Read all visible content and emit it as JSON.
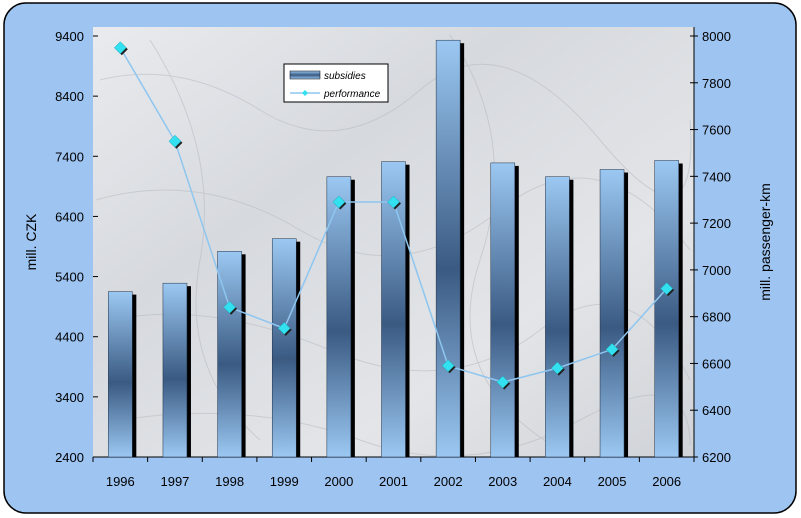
{
  "chart_data": {
    "type": "bar",
    "categories": [
      "1996",
      "1997",
      "1998",
      "1999",
      "2000",
      "2001",
      "2002",
      "2003",
      "2004",
      "2005",
      "2006"
    ],
    "series": [
      {
        "name": "subsidies",
        "type": "bar",
        "axis": "left",
        "values": [
          5150,
          5290,
          5820,
          6030,
          7060,
          7310,
          9330,
          7290,
          7060,
          7180,
          7330
        ]
      },
      {
        "name": "performance",
        "type": "line",
        "axis": "right",
        "values": [
          7950,
          7550,
          6840,
          6750,
          7290,
          7290,
          6590,
          6520,
          6580,
          6660,
          6920
        ]
      }
    ],
    "y_left": {
      "label": "mill. CZK",
      "ylim": [
        2400,
        9400
      ],
      "ticks": [
        "2400",
        "3400",
        "4400",
        "5400",
        "6400",
        "7400",
        "8400",
        "9400"
      ]
    },
    "y_right": {
      "label": "mill. passenger-km",
      "ylim": [
        6200,
        8000
      ],
      "ticks": [
        "6200",
        "6400",
        "6600",
        "6800",
        "7000",
        "7200",
        "7400",
        "7600",
        "7800",
        "8000"
      ]
    },
    "legend": {
      "placement": "top-center"
    },
    "colors": {
      "bar_light": "#9bc8f2",
      "bar_dark": "#3a5a82",
      "line": "#8ec6f0",
      "marker": "#33e0f0",
      "frame": "#9ec4f2"
    }
  }
}
